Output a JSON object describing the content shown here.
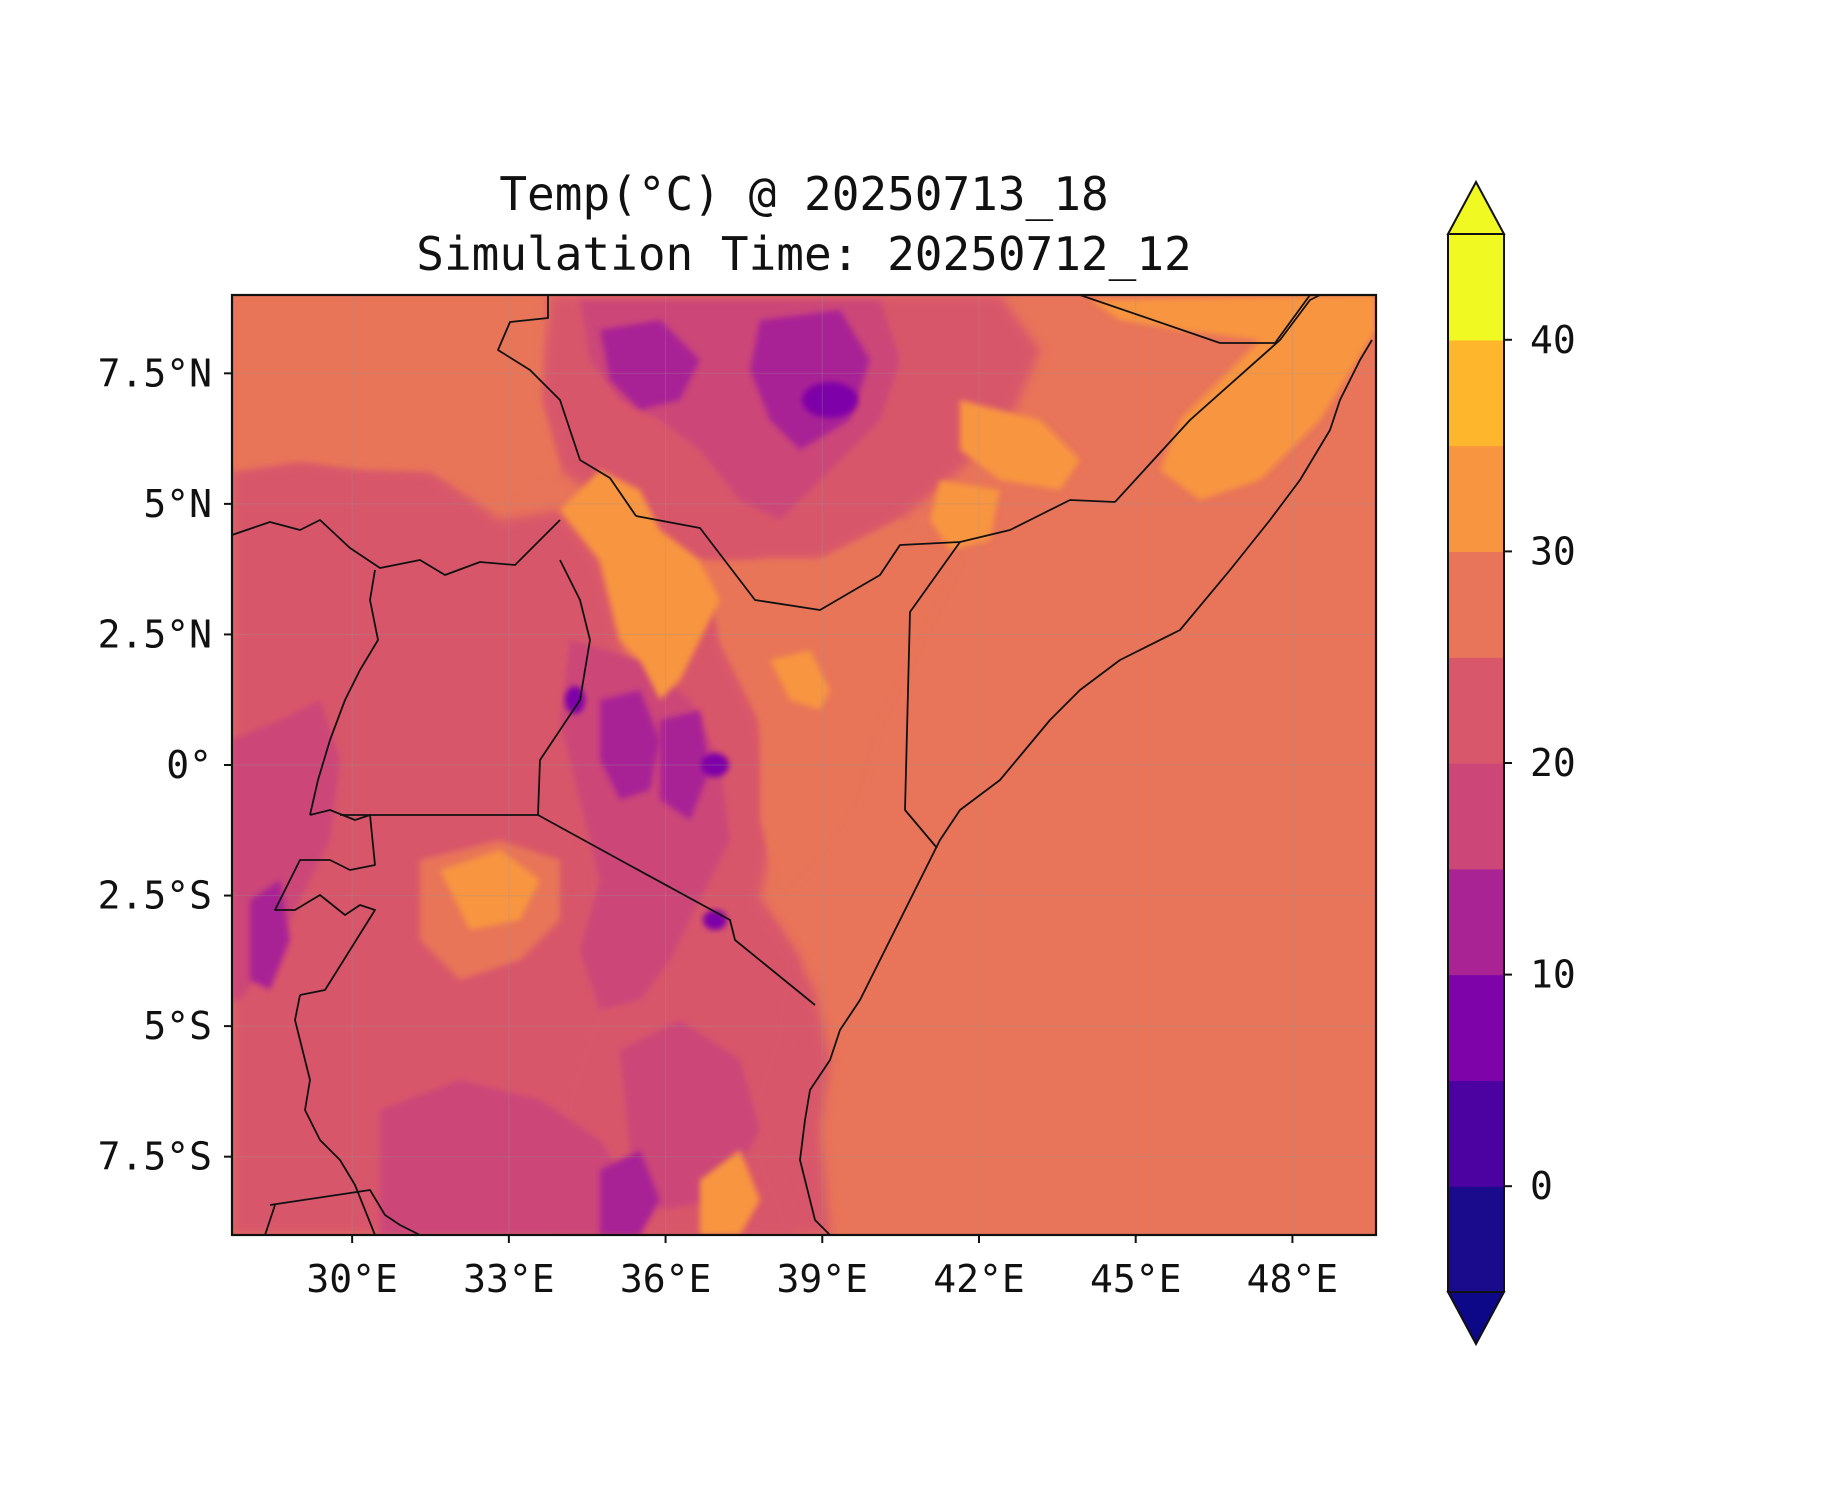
{
  "title": {
    "line1": "Temp(°C) @ 20250713_18",
    "line2": "Simulation Time: 20250712_12"
  },
  "map": {
    "lon_range": [
      27.7,
      49.6
    ],
    "lat_range": [
      -9.0,
      9.0
    ],
    "lon_ticks": [
      30,
      33,
      36,
      39,
      42,
      45,
      48
    ],
    "lon_tick_labels": [
      "30°E",
      "33°E",
      "36°E",
      "39°E",
      "42°E",
      "45°E",
      "48°E"
    ],
    "lat_ticks": [
      7.5,
      5,
      2.5,
      0,
      -2.5,
      -5,
      -7.5
    ],
    "lat_tick_labels": [
      "7.5°N",
      "5°N",
      "2.5°N",
      "0°",
      "2.5°S",
      "5°S",
      "7.5°S"
    ],
    "ocean_color": "#e87459",
    "border_color": "#111111"
  },
  "colorbar": {
    "levels": [
      -5,
      0,
      5,
      10,
      15,
      20,
      25,
      30,
      35,
      40,
      45
    ],
    "colors": [
      "#1a0a8c",
      "#4c02a1",
      "#7e03a8",
      "#a92395",
      "#cc4778",
      "#d8576b",
      "#e87459",
      "#f89540",
      "#feb72d",
      "#f0f921"
    ],
    "under_color": "#0d0887",
    "over_color": "#f0f921",
    "tick_values": [
      0,
      10,
      20,
      30,
      40
    ],
    "tick_labels": [
      "0",
      "10",
      "20",
      "30",
      "40"
    ]
  }
}
